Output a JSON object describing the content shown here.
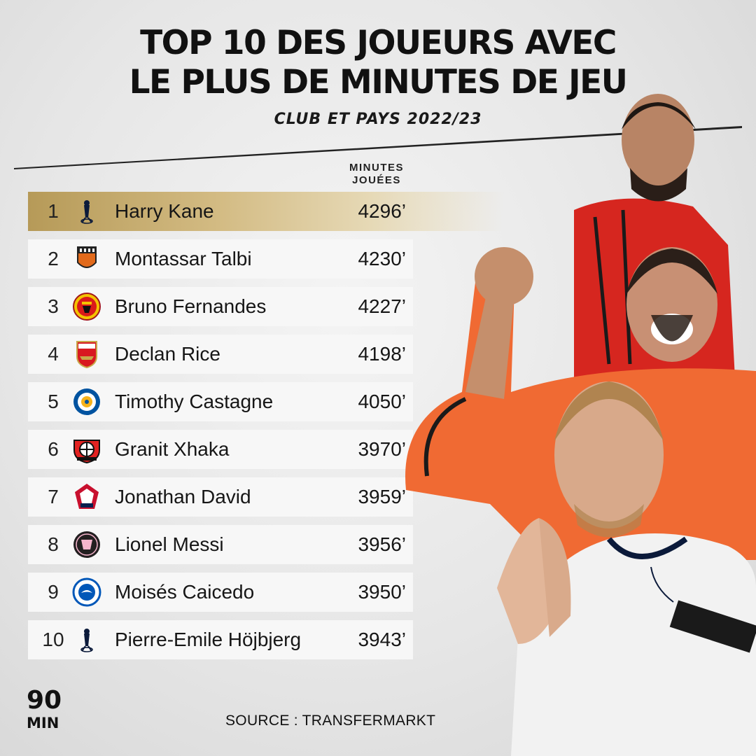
{
  "header": {
    "title_line1": "TOP 10 DES JOUEURS AVEC",
    "title_line2": "LE PLUS DE MINUTES DE JEU",
    "subtitle": "CLUB ET PAYS 2022/23"
  },
  "table": {
    "column_header_line1": "MINUTES",
    "column_header_line2": "JOUÉES",
    "rows": [
      {
        "rank": "1",
        "name": "Harry Kane",
        "minutes": "4296’",
        "club_icon": "tottenham-crest-icon"
      },
      {
        "rank": "2",
        "name": "Montassar Talbi",
        "minutes": "4230’",
        "club_icon": "lorient-crest-icon"
      },
      {
        "rank": "3",
        "name": "Bruno Fernandes",
        "minutes": "4227’",
        "club_icon": "manchester-united-crest-icon"
      },
      {
        "rank": "4",
        "name": "Declan Rice",
        "minutes": "4198’",
        "club_icon": "arsenal-crest-icon"
      },
      {
        "rank": "5",
        "name": "Timothy Castagne",
        "minutes": "4050’",
        "club_icon": "leicester-city-crest-icon"
      },
      {
        "rank": "6",
        "name": "Granit Xhaka",
        "minutes": "3970’",
        "club_icon": "bayer-leverkusen-crest-icon"
      },
      {
        "rank": "7",
        "name": "Jonathan David",
        "minutes": "3959’",
        "club_icon": "lille-crest-icon"
      },
      {
        "rank": "8",
        "name": "Lionel Messi",
        "minutes": "3956’",
        "club_icon": "inter-miami-crest-icon"
      },
      {
        "rank": "9",
        "name": "Moisés Caicedo",
        "minutes": "3950’",
        "club_icon": "brighton-crest-icon"
      },
      {
        "rank": "10",
        "name": "Pierre-Emile Höjbjerg",
        "minutes": "3943’",
        "club_icon": "tottenham-crest-icon"
      }
    ]
  },
  "branding": {
    "logo_line1": "90",
    "logo_line2": "MIN"
  },
  "footer": {
    "source": "SOURCE : TRANSFERMARKT"
  },
  "colors": {
    "highlight_gold": "#c2a76a",
    "row_background": "#f7f7f7",
    "text": "#111111"
  }
}
